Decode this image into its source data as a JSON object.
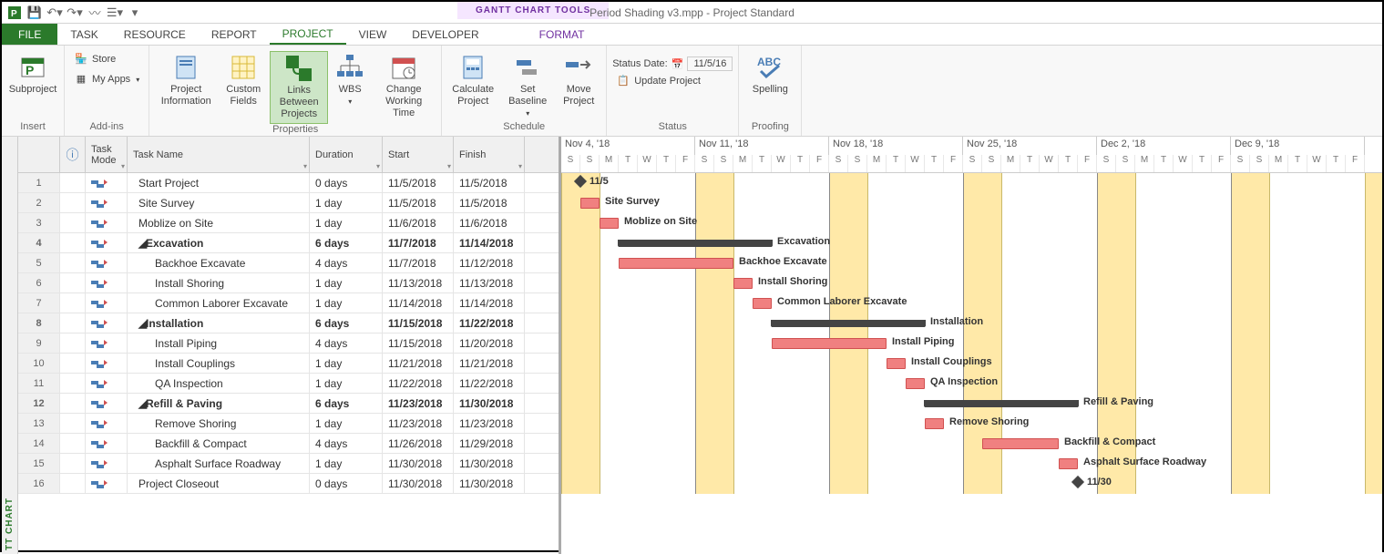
{
  "toolTab": "GANTT CHART TOOLS",
  "windowTitle": "Period Shading v3.mpp - Project Standard",
  "tabs": {
    "file": "FILE",
    "items": [
      "TASK",
      "RESOURCE",
      "REPORT",
      "PROJECT",
      "VIEW",
      "DEVELOPER"
    ],
    "active": "PROJECT",
    "tool": "FORMAT"
  },
  "ribbon": {
    "insert": {
      "label": "Insert",
      "subproject": "Subproject"
    },
    "addins": {
      "label": "Add-ins",
      "store": "Store",
      "myapps": "My Apps"
    },
    "properties": {
      "label": "Properties",
      "projectInfo": "Project Information",
      "customFields": "Custom Fields",
      "links": "Links Between Projects",
      "wbs": "WBS",
      "changeWT": "Change Working Time"
    },
    "schedule": {
      "label": "Schedule",
      "calc": "Calculate Project",
      "baseline": "Set Baseline",
      "move": "Move Project"
    },
    "status": {
      "label": "Status",
      "dateLabel": "Status Date:",
      "date": "11/5/16",
      "update": "Update Project"
    },
    "proofing": {
      "label": "Proofing",
      "spelling": "Spelling"
    }
  },
  "columns": {
    "info": "ⓘ",
    "mode": "Task Mode",
    "name": "Task Name",
    "dur": "Duration",
    "start": "Start",
    "finish": "Finish"
  },
  "sidebar": "TT CHART",
  "tasks": [
    {
      "n": 1,
      "name": "Start Project",
      "dur": "0 days",
      "start": "11/5/2018",
      "fin": "11/5/2018",
      "lvl": 0,
      "bold": false,
      "type": "ms",
      "s": 1,
      "e": 1,
      "label": "11/5"
    },
    {
      "n": 2,
      "name": "Site Survey",
      "dur": "1 day",
      "start": "11/5/2018",
      "fin": "11/5/2018",
      "lvl": 0,
      "bold": false,
      "type": "bar",
      "s": 1,
      "e": 2,
      "label": "Site Survey"
    },
    {
      "n": 3,
      "name": "Moblize on Site",
      "dur": "1 day",
      "start": "11/6/2018",
      "fin": "11/6/2018",
      "lvl": 0,
      "bold": false,
      "type": "bar",
      "s": 2,
      "e": 3,
      "label": "Moblize on Site"
    },
    {
      "n": 4,
      "name": "Excavation",
      "dur": "6 days",
      "start": "11/7/2018",
      "fin": "11/14/2018",
      "lvl": 0,
      "bold": true,
      "type": "sum",
      "s": 3,
      "e": 11,
      "label": "Excavation"
    },
    {
      "n": 5,
      "name": "Backhoe Excavate",
      "dur": "4 days",
      "start": "11/7/2018",
      "fin": "11/12/2018",
      "lvl": 1,
      "bold": false,
      "type": "bar",
      "s": 3,
      "e": 9,
      "label": "Backhoe Excavate"
    },
    {
      "n": 6,
      "name": "Install Shoring",
      "dur": "1 day",
      "start": "11/13/2018",
      "fin": "11/13/2018",
      "lvl": 1,
      "bold": false,
      "type": "bar",
      "s": 9,
      "e": 10,
      "label": "Install Shoring"
    },
    {
      "n": 7,
      "name": "Common Laborer Excavate",
      "dur": "1 day",
      "start": "11/14/2018",
      "fin": "11/14/2018",
      "lvl": 1,
      "bold": false,
      "type": "bar",
      "s": 10,
      "e": 11,
      "label": "Common Laborer Excavate"
    },
    {
      "n": 8,
      "name": "Installation",
      "dur": "6 days",
      "start": "11/15/2018",
      "fin": "11/22/2018",
      "lvl": 0,
      "bold": true,
      "type": "sum",
      "s": 11,
      "e": 19,
      "label": "Installation"
    },
    {
      "n": 9,
      "name": "Install Piping",
      "dur": "4 days",
      "start": "11/15/2018",
      "fin": "11/20/2018",
      "lvl": 1,
      "bold": false,
      "type": "bar",
      "s": 11,
      "e": 17,
      "label": "Install Piping"
    },
    {
      "n": 10,
      "name": "Install Couplings",
      "dur": "1 day",
      "start": "11/21/2018",
      "fin": "11/21/2018",
      "lvl": 1,
      "bold": false,
      "type": "bar",
      "s": 17,
      "e": 18,
      "label": "Install Couplings"
    },
    {
      "n": 11,
      "name": "QA Inspection",
      "dur": "1 day",
      "start": "11/22/2018",
      "fin": "11/22/2018",
      "lvl": 1,
      "bold": false,
      "type": "bar",
      "s": 18,
      "e": 19,
      "label": "QA Inspection"
    },
    {
      "n": 12,
      "name": "Refill & Paving",
      "dur": "6 days",
      "start": "11/23/2018",
      "fin": "11/30/2018",
      "lvl": 0,
      "bold": true,
      "type": "sum",
      "s": 19,
      "e": 27,
      "label": "Refill & Paving"
    },
    {
      "n": 13,
      "name": "Remove Shoring",
      "dur": "1 day",
      "start": "11/23/2018",
      "fin": "11/23/2018",
      "lvl": 1,
      "bold": false,
      "type": "bar",
      "s": 19,
      "e": 20,
      "label": "Remove Shoring"
    },
    {
      "n": 14,
      "name": "Backfill & Compact",
      "dur": "4 days",
      "start": "11/26/2018",
      "fin": "11/29/2018",
      "lvl": 1,
      "bold": false,
      "type": "bar",
      "s": 22,
      "e": 26,
      "label": "Backfill & Compact"
    },
    {
      "n": 15,
      "name": "Asphalt Surface Roadway",
      "dur": "1 day",
      "start": "11/30/2018",
      "fin": "11/30/2018",
      "lvl": 1,
      "bold": false,
      "type": "bar",
      "s": 26,
      "e": 27,
      "label": "Asphalt Surface Roadway"
    },
    {
      "n": 16,
      "name": "Project Closeout",
      "dur": "0 days",
      "start": "11/30/2018",
      "fin": "11/30/2018",
      "lvl": 0,
      "bold": false,
      "type": "ms",
      "s": 27,
      "e": 27,
      "label": "11/30"
    }
  ],
  "timeline": {
    "dayWidth": 21,
    "weeks": [
      "Nov 4, '18",
      "Nov 11, '18",
      "Nov 18, '18",
      "Nov 25, '18",
      "Dec 2, '18",
      "Dec 9, '18"
    ],
    "dayLetters": [
      "S",
      "S",
      "M",
      "T",
      "W",
      "T",
      "F"
    ],
    "firstDayOffset": 0,
    "shadedPairs": [
      0,
      1,
      7,
      8,
      14,
      15,
      21,
      22,
      28,
      29,
      35,
      36,
      42,
      43
    ]
  },
  "colors": {
    "accent": "#2b7a2b",
    "shade": "#ffe9a8",
    "bar": "#f08080",
    "barBorder": "#d05050"
  }
}
